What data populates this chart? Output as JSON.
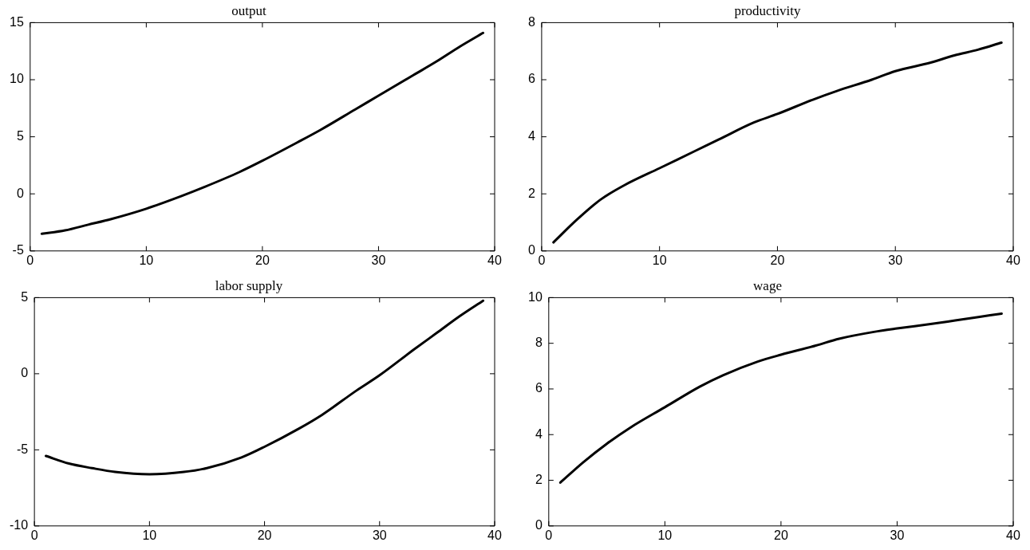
{
  "chart_data": [
    {
      "type": "line",
      "title": "output",
      "x": [
        1,
        3,
        5,
        7,
        10,
        13,
        15,
        18,
        20,
        23,
        25,
        28,
        30,
        33,
        35,
        37,
        39
      ],
      "series": [
        {
          "color": "#000000",
          "values": [
            -3.5,
            -3.2,
            -2.7,
            -2.2,
            -1.3,
            -0.2,
            0.6,
            1.9,
            2.9,
            4.5,
            5.6,
            7.4,
            8.6,
            10.4,
            11.6,
            12.9,
            14.1
          ]
        }
      ],
      "xlim": [
        0,
        40
      ],
      "xticks": [
        0,
        10,
        20,
        30,
        40
      ],
      "ylim": [
        -5,
        15
      ],
      "yticks": [
        -5,
        0,
        5,
        10,
        15
      ],
      "grid": false,
      "legend": false,
      "line_style": "solid",
      "marker": "none"
    },
    {
      "type": "line",
      "title": "productivity",
      "x": [
        1,
        3,
        5,
        7,
        10,
        13,
        15,
        18,
        20,
        23,
        25,
        28,
        30,
        33,
        35,
        37,
        39
      ],
      "series": [
        {
          "color": "#000000",
          "values": [
            0.3,
            1.1,
            1.8,
            2.3,
            2.9,
            3.5,
            3.9,
            4.5,
            4.8,
            5.3,
            5.6,
            6.0,
            6.3,
            6.6,
            6.85,
            7.05,
            7.3
          ]
        }
      ],
      "xlim": [
        0,
        40
      ],
      "xticks": [
        0,
        10,
        20,
        30,
        40
      ],
      "ylim": [
        0,
        8
      ],
      "yticks": [
        0,
        2,
        4,
        6,
        8
      ],
      "grid": false,
      "legend": false,
      "line_style": "solid",
      "marker": "none"
    },
    {
      "type": "line",
      "title": "labor supply",
      "x": [
        1,
        3,
        5,
        7,
        10,
        13,
        15,
        18,
        20,
        23,
        25,
        28,
        30,
        33,
        35,
        37,
        39
      ],
      "series": [
        {
          "color": "#000000",
          "values": [
            -5.4,
            -5.9,
            -6.2,
            -6.45,
            -6.6,
            -6.45,
            -6.2,
            -5.5,
            -4.8,
            -3.6,
            -2.7,
            -1.1,
            -0.1,
            1.6,
            2.7,
            3.8,
            4.8
          ]
        }
      ],
      "xlim": [
        0,
        40
      ],
      "xticks": [
        0,
        10,
        20,
        30,
        40
      ],
      "ylim": [
        -10,
        5
      ],
      "yticks": [
        -10,
        -5,
        0,
        5
      ],
      "grid": false,
      "legend": false,
      "line_style": "solid",
      "marker": "none"
    },
    {
      "type": "line",
      "title": "wage",
      "x": [
        1,
        3,
        5,
        7,
        10,
        13,
        15,
        18,
        20,
        23,
        25,
        28,
        30,
        33,
        35,
        37,
        39
      ],
      "series": [
        {
          "color": "#000000",
          "values": [
            1.9,
            2.8,
            3.6,
            4.3,
            5.2,
            6.1,
            6.6,
            7.2,
            7.5,
            7.9,
            8.2,
            8.5,
            8.65,
            8.85,
            9.0,
            9.15,
            9.3
          ]
        }
      ],
      "xlim": [
        0,
        40
      ],
      "xticks": [
        0,
        10,
        20,
        30,
        40
      ],
      "ylim": [
        0,
        10
      ],
      "yticks": [
        0,
        2,
        4,
        6,
        8,
        10
      ],
      "grid": false,
      "legend": false,
      "line_style": "solid",
      "marker": "none"
    }
  ]
}
